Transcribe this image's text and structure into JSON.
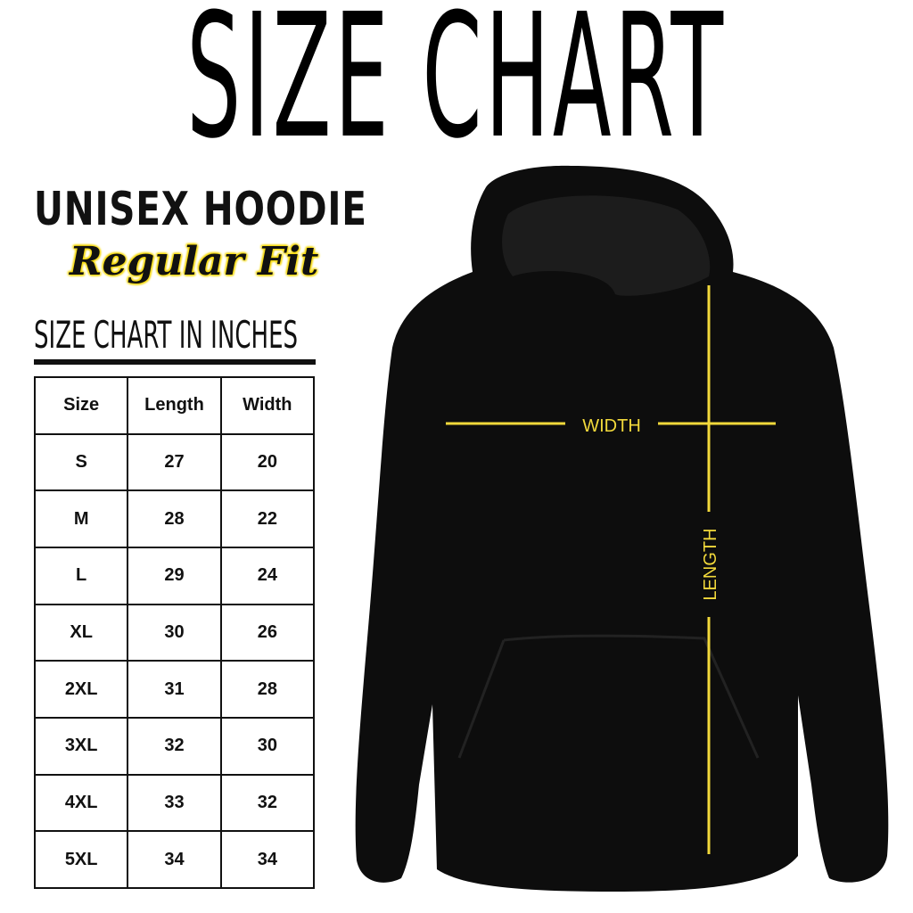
{
  "title": "SIZE CHART",
  "product": "UNISEX HOODIE",
  "fit": "Regular Fit",
  "table_caption": "SIZE CHART IN INCHES",
  "table": {
    "headers": [
      "Size",
      "Length",
      "Width"
    ],
    "rows": [
      [
        "S",
        "27",
        "20"
      ],
      [
        "M",
        "28",
        "22"
      ],
      [
        "L",
        "29",
        "24"
      ],
      [
        "XL",
        "30",
        "26"
      ],
      [
        "2XL",
        "31",
        "28"
      ],
      [
        "3XL",
        "32",
        "30"
      ],
      [
        "4XL",
        "33",
        "32"
      ],
      [
        "5XL",
        "34",
        "34"
      ]
    ]
  },
  "diagram": {
    "width_label": "WIDTH",
    "length_label": "LENGTH",
    "line_color": "#f2d93b",
    "garment_color": "#0d0d0d"
  }
}
